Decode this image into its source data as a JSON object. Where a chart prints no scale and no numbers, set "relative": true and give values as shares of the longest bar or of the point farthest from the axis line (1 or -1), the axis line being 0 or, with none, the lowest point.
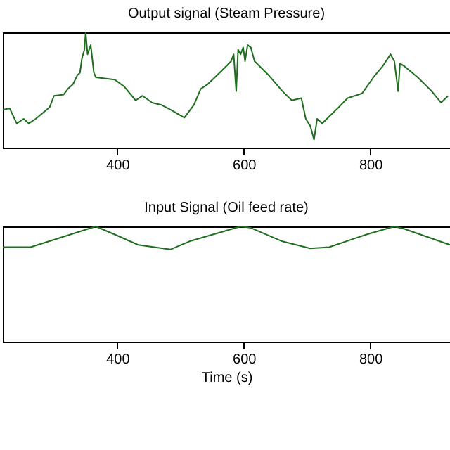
{
  "chart_data": [
    {
      "type": "line",
      "title": "Output signal (Steam Pressure)",
      "relative": true,
      "xlim": [
        219,
        926
      ],
      "xticks": [
        400,
        600,
        800
      ],
      "grid": false,
      "line_style": "solid",
      "marker": "none",
      "series": [
        {
          "color": "#1f6e1f",
          "x": [
            219,
            230,
            241,
            252,
            260,
            271,
            293,
            300,
            315,
            322,
            330,
            337,
            341,
            344,
            348,
            350,
            353,
            358,
            363,
            366,
            396,
            411,
            429,
            440,
            455,
            470,
            484,
            506,
            521,
            532,
            543,
            558,
            573,
            580,
            584,
            588,
            591,
            595,
            599,
            602,
            606,
            611,
            617,
            639,
            661,
            676,
            691,
            698,
            705,
            711,
            716,
            724,
            735,
            750,
            764,
            787,
            805,
            820,
            832,
            838,
            844,
            847,
            853,
            875,
            897,
            912,
            923
          ],
          "values": [
            0.33,
            0.34,
            0.21,
            0.25,
            0.21,
            0.25,
            0.35,
            0.45,
            0.46,
            0.51,
            0.55,
            0.63,
            0.65,
            0.77,
            0.85,
            1.0,
            0.81,
            0.89,
            0.65,
            0.61,
            0.59,
            0.53,
            0.41,
            0.45,
            0.39,
            0.37,
            0.33,
            0.26,
            0.37,
            0.51,
            0.55,
            0.63,
            0.71,
            0.75,
            0.81,
            0.49,
            0.85,
            0.81,
            0.87,
            0.75,
            0.89,
            0.87,
            0.75,
            0.63,
            0.49,
            0.41,
            0.43,
            0.25,
            0.19,
            0.07,
            0.25,
            0.21,
            0.27,
            0.35,
            0.43,
            0.47,
            0.61,
            0.71,
            0.81,
            0.75,
            0.49,
            0.73,
            0.71,
            0.61,
            0.49,
            0.39,
            0.45
          ]
        }
      ]
    },
    {
      "type": "line",
      "title": "Input Signal (Oil feed rate)",
      "xlabel": "Time (s)",
      "relative": true,
      "xlim": [
        219,
        926
      ],
      "xticks": [
        400,
        600,
        800
      ],
      "grid": false,
      "line_style": "solid",
      "marker": "none",
      "series": [
        {
          "color": "#1f6e1f",
          "x": [
            219,
            263,
            366,
            396,
            433,
            484,
            514,
            595,
            610,
            661,
            705,
            735,
            794,
            838,
            853,
            926
          ],
          "values": [
            0.82,
            0.82,
            1.0,
            0.93,
            0.84,
            0.8,
            0.87,
            1.0,
            0.99,
            0.87,
            0.81,
            0.82,
            0.93,
            1.0,
            0.98,
            0.84
          ]
        }
      ]
    }
  ]
}
